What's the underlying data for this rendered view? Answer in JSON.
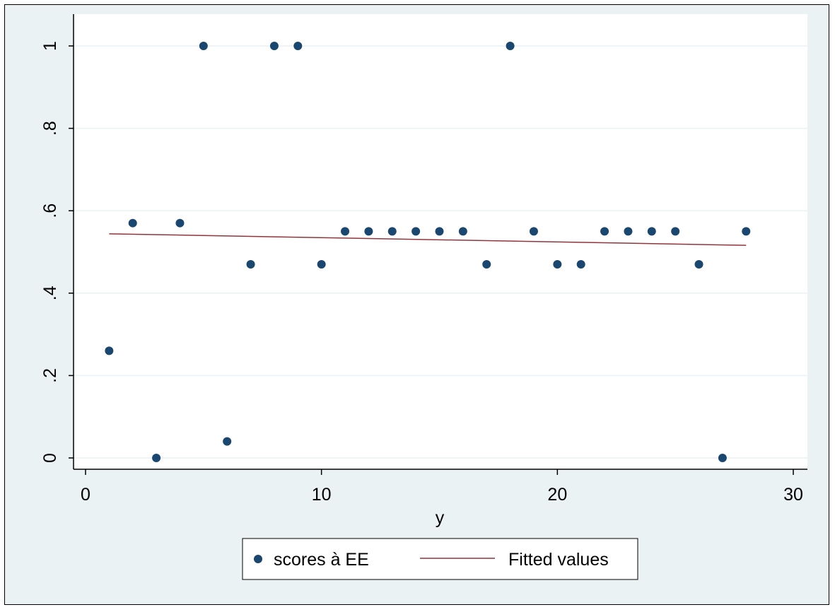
{
  "chart_data": {
    "type": "scatter",
    "title": "",
    "xlabel": "y",
    "ylabel": "",
    "xlim": [
      0,
      30
    ],
    "ylim": [
      0,
      1
    ],
    "x_ticks": [
      0,
      10,
      20,
      30
    ],
    "x_tick_labels": [
      "0",
      "10",
      "20",
      "30"
    ],
    "y_ticks": [
      0,
      0.2,
      0.4,
      0.6,
      0.8,
      1
    ],
    "y_tick_labels": [
      "0",
      ".2",
      ".4",
      ".6",
      ".8",
      "1"
    ],
    "grid": true,
    "legend_position": "bottom",
    "series": [
      {
        "name": "scores à EE",
        "type": "scatter",
        "color": "#1a476f",
        "x": [
          1,
          2,
          3,
          4,
          5,
          6,
          7,
          8,
          9,
          10,
          11,
          12,
          13,
          14,
          15,
          16,
          17,
          18,
          19,
          20,
          21,
          22,
          23,
          24,
          25,
          26,
          27,
          28
        ],
        "y": [
          0.26,
          0.57,
          0,
          0.57,
          1,
          0.04,
          0.47,
          1,
          1,
          0.47,
          0.55,
          0.55,
          0.55,
          0.55,
          0.55,
          0.55,
          0.47,
          1,
          0.55,
          0.47,
          0.47,
          0.55,
          0.55,
          0.55,
          0.55,
          0.47,
          0,
          0.55
        ]
      },
      {
        "name": "Fitted values",
        "type": "line",
        "color": "#90353b",
        "x": [
          1,
          28
        ],
        "y": [
          0.544,
          0.516
        ]
      }
    ]
  }
}
